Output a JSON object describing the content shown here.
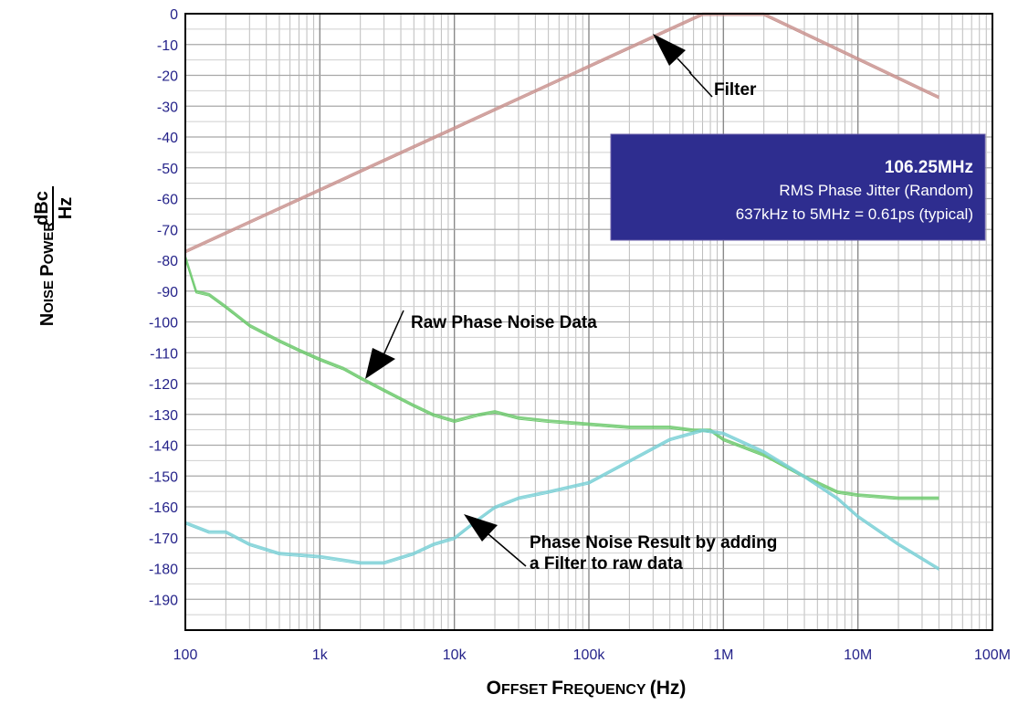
{
  "chart_data": {
    "type": "line",
    "xlabel": "Offset Frequency (Hz)",
    "ylabel": {
      "prefix": "Noise Power",
      "unit_numerator": "dBc",
      "unit_denominator": "Hz"
    },
    "x_scale": "log",
    "xlim": [
      100,
      100000000
    ],
    "ylim": [
      -200,
      0
    ],
    "grid": true,
    "x_ticks": [
      {
        "value": 100,
        "label": "100"
      },
      {
        "value": 1000,
        "label": "1k"
      },
      {
        "value": 10000,
        "label": "10k"
      },
      {
        "value": 100000,
        "label": "100k"
      },
      {
        "value": 1000000,
        "label": "1M"
      },
      {
        "value": 10000000,
        "label": "10M"
      },
      {
        "value": 100000000,
        "label": "100M"
      }
    ],
    "y_ticks": [
      {
        "value": 0,
        "label": "0"
      },
      {
        "value": -10,
        "label": "-10"
      },
      {
        "value": -20,
        "label": "-20"
      },
      {
        "value": -30,
        "label": "-30"
      },
      {
        "value": -40,
        "label": "-40"
      },
      {
        "value": -50,
        "label": "-50"
      },
      {
        "value": -60,
        "label": "-60"
      },
      {
        "value": -70,
        "label": "-70"
      },
      {
        "value": -80,
        "label": "-80"
      },
      {
        "value": -90,
        "label": "-90"
      },
      {
        "value": -100,
        "label": "-100"
      },
      {
        "value": -110,
        "label": "-110"
      },
      {
        "value": -120,
        "label": "-120"
      },
      {
        "value": -130,
        "label": "-130"
      },
      {
        "value": -140,
        "label": "-140"
      },
      {
        "value": -150,
        "label": "-150"
      },
      {
        "value": -160,
        "label": "-160"
      },
      {
        "value": -170,
        "label": "-170"
      },
      {
        "value": -180,
        "label": "-180"
      },
      {
        "value": -190,
        "label": "-190"
      }
    ],
    "series": [
      {
        "key": "filter",
        "color": "#c9938f",
        "points": [
          [
            100,
            -77
          ],
          [
            700000,
            0
          ],
          [
            2000000,
            0
          ],
          [
            40000000,
            -27
          ]
        ]
      },
      {
        "key": "raw",
        "color": "#6cc96c",
        "points": [
          [
            100,
            -79
          ],
          [
            120,
            -90
          ],
          [
            150,
            -91
          ],
          [
            200,
            -95
          ],
          [
            300,
            -101
          ],
          [
            500,
            -106
          ],
          [
            700,
            -109
          ],
          [
            1000,
            -112
          ],
          [
            1500,
            -115
          ],
          [
            2000,
            -118
          ],
          [
            3000,
            -122
          ],
          [
            5000,
            -127
          ],
          [
            7000,
            -130
          ],
          [
            10000,
            -132
          ],
          [
            15000,
            -130
          ],
          [
            20000,
            -129
          ],
          [
            30000,
            -131
          ],
          [
            50000,
            -132
          ],
          [
            100000,
            -133
          ],
          [
            200000,
            -134
          ],
          [
            400000,
            -134
          ],
          [
            600000,
            -135
          ],
          [
            800000,
            -135
          ],
          [
            1000000,
            -138
          ],
          [
            2000000,
            -143
          ],
          [
            4000000,
            -150
          ],
          [
            7000000,
            -155
          ],
          [
            10000000,
            -156
          ],
          [
            20000000,
            -157
          ],
          [
            40000000,
            -157
          ]
        ]
      },
      {
        "key": "result",
        "color": "#7ad0d6",
        "points": [
          [
            100,
            -165
          ],
          [
            150,
            -168
          ],
          [
            200,
            -168
          ],
          [
            300,
            -172
          ],
          [
            500,
            -175
          ],
          [
            1000,
            -176
          ],
          [
            2000,
            -178
          ],
          [
            3000,
            -178
          ],
          [
            5000,
            -175
          ],
          [
            7000,
            -172
          ],
          [
            10000,
            -170
          ],
          [
            15000,
            -164
          ],
          [
            20000,
            -160
          ],
          [
            30000,
            -157
          ],
          [
            50000,
            -155
          ],
          [
            100000,
            -152
          ],
          [
            200000,
            -145
          ],
          [
            400000,
            -138
          ],
          [
            700000,
            -135
          ],
          [
            1000000,
            -136
          ],
          [
            2000000,
            -142
          ],
          [
            4000000,
            -150
          ],
          [
            7000000,
            -157
          ],
          [
            10000000,
            -163
          ],
          [
            20000000,
            -172
          ],
          [
            40000000,
            -180
          ]
        ]
      }
    ],
    "annotations": [
      {
        "key": "filter",
        "text": "Filter"
      },
      {
        "key": "raw",
        "text": "Raw Phase Noise Data"
      },
      {
        "key": "result",
        "lines": [
          "Phase Noise Result by adding",
          "a Filter to raw data"
        ]
      }
    ],
    "info_box": {
      "title": "106.25MHz",
      "line1": "RMS Phase Jitter (Random)",
      "line2": "637kHz to 5MHz = 0.61ps (typical)",
      "background": "#2e2d8f"
    }
  }
}
